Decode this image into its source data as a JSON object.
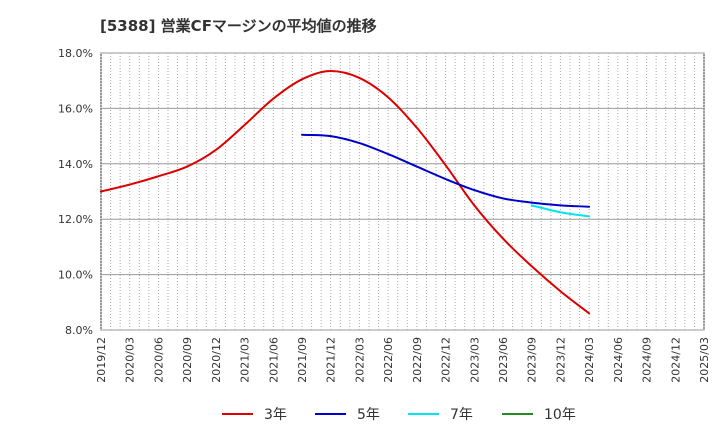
{
  "chart_data": {
    "type": "line",
    "title": "[5388]  営業CFマージンの平均値の推移",
    "xlabel": "",
    "ylabel": "",
    "ylim": [
      8.0,
      18.0
    ],
    "y_ticks": [
      "8.0%",
      "10.0%",
      "12.0%",
      "14.0%",
      "16.0%",
      "18.0%"
    ],
    "x_ticks": [
      "2019/12",
      "2020/03",
      "2020/06",
      "2020/09",
      "2020/12",
      "2021/03",
      "2021/06",
      "2021/09",
      "2021/12",
      "2022/03",
      "2022/06",
      "2022/09",
      "2022/12",
      "2023/03",
      "2023/06",
      "2023/09",
      "2023/12",
      "2024/03",
      "2024/06",
      "2024/09",
      "2024/12",
      "2025/03"
    ],
    "grid": true,
    "legend_position": "bottom",
    "series": [
      {
        "name": "3年",
        "color": "#dd0000",
        "points": [
          [
            "2019/12",
            13.0
          ],
          [
            "2020/03",
            13.25
          ],
          [
            "2020/06",
            13.55
          ],
          [
            "2020/09",
            13.9
          ],
          [
            "2020/12",
            14.5
          ],
          [
            "2021/03",
            15.4
          ],
          [
            "2021/06",
            16.35
          ],
          [
            "2021/09",
            17.05
          ],
          [
            "2021/12",
            17.35
          ],
          [
            "2022/03",
            17.1
          ],
          [
            "2022/06",
            16.4
          ],
          [
            "2022/09",
            15.3
          ],
          [
            "2022/12",
            13.95
          ],
          [
            "2023/03",
            12.5
          ],
          [
            "2023/06",
            11.3
          ],
          [
            "2023/09",
            10.3
          ],
          [
            "2023/12",
            9.4
          ],
          [
            "2024/03",
            8.6
          ]
        ]
      },
      {
        "name": "5年",
        "color": "#0000cc",
        "points": [
          [
            "2021/09",
            15.05
          ],
          [
            "2021/12",
            15.0
          ],
          [
            "2022/03",
            14.75
          ],
          [
            "2022/06",
            14.35
          ],
          [
            "2022/09",
            13.9
          ],
          [
            "2022/12",
            13.45
          ],
          [
            "2023/03",
            13.05
          ],
          [
            "2023/06",
            12.75
          ],
          [
            "2023/09",
            12.6
          ],
          [
            "2023/12",
            12.5
          ],
          [
            "2024/03",
            12.45
          ]
        ]
      },
      {
        "name": "7年",
        "color": "#00e5ee",
        "points": [
          [
            "2023/09",
            12.5
          ],
          [
            "2023/12",
            12.25
          ],
          [
            "2024/03",
            12.1
          ]
        ]
      },
      {
        "name": "10年",
        "color": "#228b22",
        "points": []
      }
    ]
  }
}
